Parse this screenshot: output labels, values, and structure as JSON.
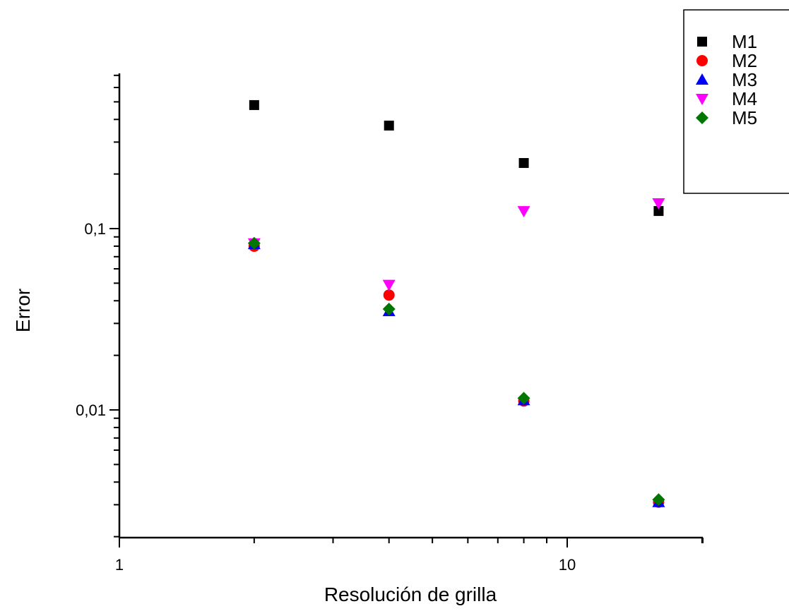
{
  "chart_data": {
    "type": "scatter",
    "title": "",
    "xlabel": "Resolución de grilla",
    "ylabel": "Error",
    "x_scale": "log",
    "y_scale": "log",
    "xlim": [
      1,
      20
    ],
    "ylim": [
      0.002,
      0.8
    ],
    "x_ticks": [
      {
        "value": 1,
        "label": "1"
      },
      {
        "value": 10,
        "label": "10"
      }
    ],
    "y_ticks": [
      {
        "value": 0.01,
        "label": "0,01"
      },
      {
        "value": 0.1,
        "label": "0,1"
      }
    ],
    "grid": false,
    "legend_position": "top-right",
    "x": [
      2,
      4,
      8,
      16
    ],
    "series": [
      {
        "name": "M1",
        "marker": "square",
        "color": "#000000",
        "values": [
          0.48,
          0.37,
          0.23,
          0.125
        ]
      },
      {
        "name": "M2",
        "marker": "circle",
        "color": "#ff0000",
        "values": [
          0.08,
          0.043,
          0.0112,
          0.0031
        ]
      },
      {
        "name": "M3",
        "marker": "triangle-up",
        "color": "#0000ff",
        "values": [
          0.082,
          0.035,
          0.0113,
          0.0031
        ]
      },
      {
        "name": "M4",
        "marker": "triangle-down",
        "color": "#ff00ff",
        "values": [
          0.083,
          0.049,
          0.125,
          0.138
        ]
      },
      {
        "name": "M5",
        "marker": "diamond",
        "color": "#007700",
        "values": [
          0.083,
          0.036,
          0.0116,
          0.0032
        ]
      }
    ]
  }
}
